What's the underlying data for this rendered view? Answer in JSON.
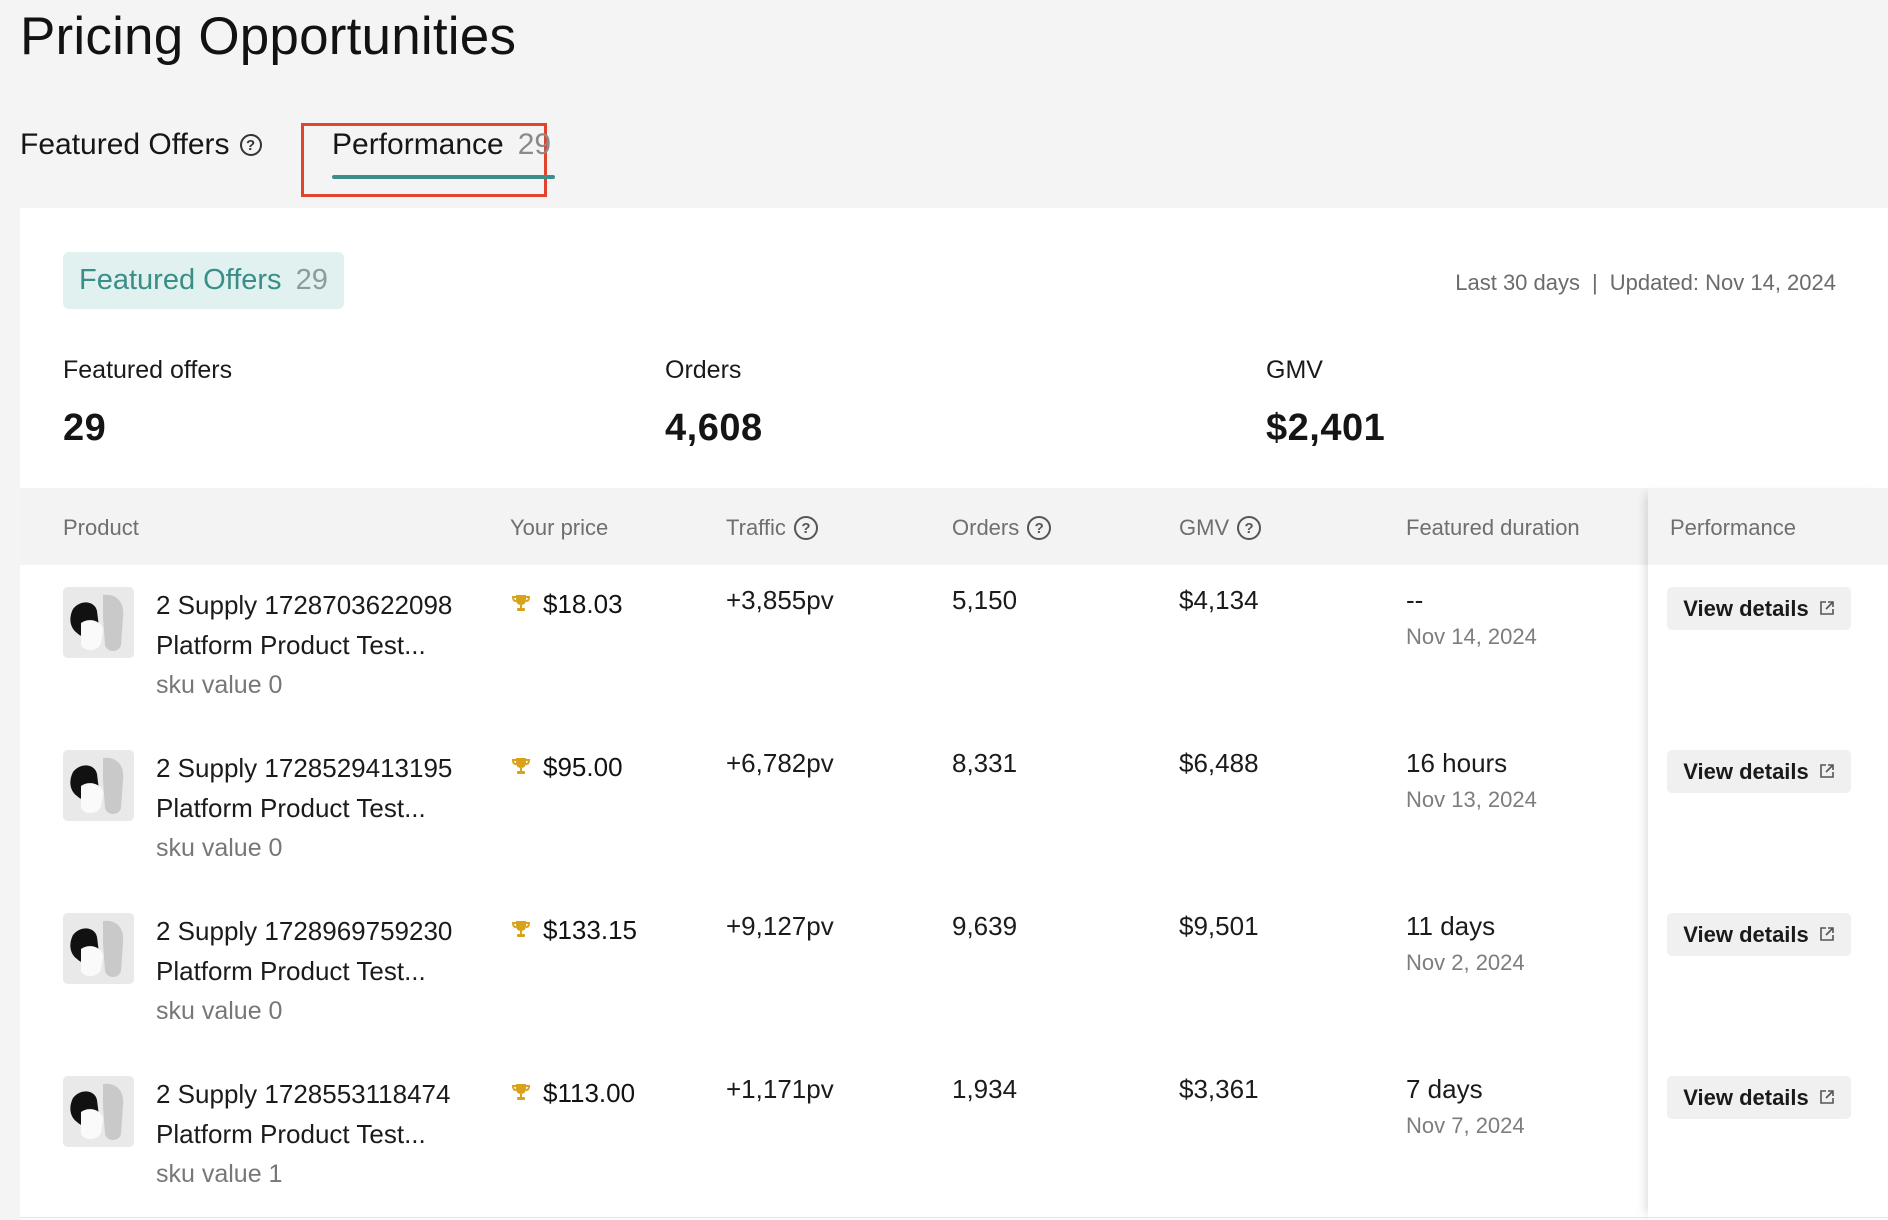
{
  "page": {
    "title": "Pricing Opportunities"
  },
  "tabs": [
    {
      "label": "Featured Offers",
      "count": ""
    },
    {
      "label": "Performance",
      "count": "29"
    }
  ],
  "panel": {
    "pill_label": "Featured Offers",
    "pill_count": "29",
    "range": "Last 30 days",
    "separator": "|",
    "updated": "Updated: Nov 14, 2024"
  },
  "stats": [
    {
      "label": "Featured offers",
      "value": "29"
    },
    {
      "label": "Orders",
      "value": "4,608"
    },
    {
      "label": "GMV",
      "value": "$2,401"
    }
  ],
  "table": {
    "headers": {
      "product": "Product",
      "price": "Your price",
      "traffic": "Traffic",
      "orders": "Orders",
      "gmv": "GMV",
      "duration": "Featured duration",
      "performance": "Performance"
    },
    "action_label": "View details",
    "rows": [
      {
        "name": "2 Supply 1728703622098 Platform Product Test...",
        "sku": "sku value 0",
        "price": "$18.03",
        "traffic": "+3,855pv",
        "orders": "5,150",
        "gmv": "$4,134",
        "duration": "--",
        "date": "Nov 14, 2024"
      },
      {
        "name": "2 Supply 1728529413195 Platform Product Test...",
        "sku": "sku value 0",
        "price": "$95.00",
        "traffic": "+6,782pv",
        "orders": "8,331",
        "gmv": "$6,488",
        "duration": "16 hours",
        "date": "Nov 13, 2024"
      },
      {
        "name": "2 Supply 1728969759230 Platform Product Test...",
        "sku": "sku value 0",
        "price": "$133.15",
        "traffic": "+9,127pv",
        "orders": "9,639",
        "gmv": "$9,501",
        "duration": "11 days",
        "date": "Nov 2, 2024"
      },
      {
        "name": "2 Supply 1728553118474 Platform Product Test...",
        "sku": "sku value 1",
        "price": "$113.00",
        "traffic": "+1,171pv",
        "orders": "1,934",
        "gmv": "$3,361",
        "duration": "7 days",
        "date": "Nov 7, 2024"
      }
    ]
  },
  "colors": {
    "accent": "#3c8e8a",
    "highlight_box": "#e0442e",
    "trophy": "#d9a21b"
  }
}
